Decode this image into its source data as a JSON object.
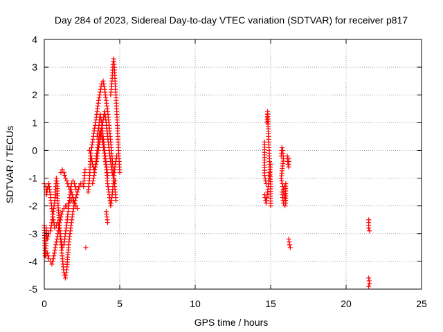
{
  "chart_data": {
    "type": "scatter",
    "title": "Day 284 of 2023, Sidereal Day-to-day VTEC variation (SDTVAR) for receiver p817",
    "xlabel": "GPS time / hours",
    "ylabel": "SDTVAR / TECUs",
    "xlim": [
      0,
      25
    ],
    "ylim": [
      -5,
      4
    ],
    "xticks": [
      0,
      5,
      10,
      15,
      20,
      25
    ],
    "yticks": [
      -5,
      -4,
      -3,
      -2,
      -1,
      0,
      1,
      2,
      3,
      4
    ],
    "grid": true,
    "marker": "+",
    "color": "#ff0000",
    "series": [
      {
        "name": "SDTVAR",
        "segments": [
          [
            [
              0.0,
              -2.7
            ],
            [
              0.05,
              -3.8
            ],
            [
              0.1,
              -3.8
            ],
            [
              0.12,
              -2.8
            ],
            [
              0.15,
              -3.1
            ],
            [
              0.2,
              -3.2
            ],
            [
              0.3,
              -3.0
            ],
            [
              0.4,
              -2.9
            ],
            [
              0.5,
              -2.6
            ],
            [
              0.6,
              -2.2
            ],
            [
              0.7,
              -1.8
            ],
            [
              0.75,
              -1.4
            ],
            [
              0.8,
              -1.0
            ],
            [
              0.85,
              -1.2
            ],
            [
              0.9,
              -1.9
            ],
            [
              1.0,
              -2.6
            ],
            [
              1.1,
              -3.2
            ],
            [
              1.2,
              -3.5
            ],
            [
              1.3,
              -3.4
            ],
            [
              1.4,
              -3.0
            ],
            [
              1.5,
              -2.6
            ],
            [
              1.6,
              -2.1
            ],
            [
              1.7,
              -1.6
            ],
            [
              1.8,
              -1.2
            ],
            [
              1.9,
              -1.1
            ],
            [
              2.0,
              -1.2
            ],
            [
              2.1,
              -1.4
            ]
          ],
          [
            [
              0.0,
              -1.2
            ],
            [
              0.1,
              -1.3
            ],
            [
              0.15,
              -1.6
            ],
            [
              0.2,
              -1.4
            ],
            [
              0.3,
              -1.2
            ],
            [
              0.4,
              -1.6
            ],
            [
              0.5,
              -2.1
            ],
            [
              0.6,
              -2.5
            ],
            [
              0.7,
              -2.8
            ],
            [
              0.8,
              -2.7
            ],
            [
              0.9,
              -2.6
            ],
            [
              1.0,
              -2.8
            ],
            [
              1.1,
              -3.3
            ],
            [
              1.2,
              -3.9
            ],
            [
              1.3,
              -4.4
            ],
            [
              1.4,
              -4.6
            ],
            [
              1.5,
              -4.2
            ],
            [
              1.6,
              -3.5
            ],
            [
              1.7,
              -3.0
            ],
            [
              1.8,
              -2.6
            ],
            [
              1.9,
              -2.2
            ],
            [
              2.0,
              -1.9
            ],
            [
              2.1,
              -1.7
            ],
            [
              2.2,
              -1.5
            ],
            [
              2.3,
              -1.3
            ],
            [
              2.4,
              -1.2
            ]
          ],
          [
            [
              0.2,
              -3.7
            ],
            [
              0.3,
              -3.9
            ],
            [
              0.4,
              -4.0
            ],
            [
              0.5,
              -4.1
            ],
            [
              0.6,
              -3.9
            ],
            [
              0.7,
              -3.6
            ],
            [
              0.8,
              -3.3
            ],
            [
              0.9,
              -3.0
            ],
            [
              1.0,
              -2.7
            ],
            [
              1.1,
              -2.4
            ],
            [
              1.2,
              -2.2
            ],
            [
              1.3,
              -2.1
            ],
            [
              1.4,
              -2.0
            ],
            [
              1.5,
              -2.0
            ],
            [
              1.6,
              -1.9
            ],
            [
              1.7,
              -1.8
            ],
            [
              1.8,
              -1.8
            ],
            [
              1.9,
              -1.8
            ],
            [
              2.0,
              -1.9
            ],
            [
              2.1,
              -2.0
            ],
            [
              2.2,
              -2.1
            ]
          ],
          [
            [
              1.1,
              -0.8
            ],
            [
              1.2,
              -0.7
            ],
            [
              1.3,
              -0.8
            ],
            [
              1.4,
              -1.0
            ],
            [
              1.5,
              -1.1
            ],
            [
              1.6,
              -1.3
            ],
            [
              1.7,
              -1.4
            ],
            [
              1.8,
              -1.5
            ],
            [
              1.9,
              -1.7
            ],
            [
              2.0,
              -1.9
            ],
            [
              2.1,
              -2.0
            ]
          ],
          [
            [
              2.3,
              -1.3
            ],
            [
              2.5,
              -1.2
            ],
            [
              2.6,
              -1.3
            ],
            [
              2.7,
              -0.7
            ],
            [
              2.75,
              -3.5
            ]
          ],
          [
            [
              2.9,
              -1.5
            ],
            [
              3.0,
              -1.0
            ],
            [
              3.05,
              -0.4
            ],
            [
              3.1,
              0.0
            ],
            [
              3.2,
              0.3
            ],
            [
              3.3,
              0.7
            ],
            [
              3.4,
              1.0
            ],
            [
              3.5,
              1.4
            ],
            [
              3.6,
              1.8
            ],
            [
              3.7,
              2.1
            ],
            [
              3.8,
              2.4
            ],
            [
              3.9,
              2.5
            ],
            [
              4.0,
              2.2
            ],
            [
              4.1,
              1.8
            ],
            [
              4.2,
              1.4
            ],
            [
              4.3,
              0.9
            ],
            [
              4.4,
              0.3
            ],
            [
              4.5,
              -0.3
            ],
            [
              4.6,
              -0.9
            ],
            [
              4.7,
              -1.5
            ],
            [
              4.75,
              -1.8
            ]
          ],
          [
            [
              3.0,
              0.0
            ],
            [
              3.1,
              -0.2
            ],
            [
              3.2,
              -0.5
            ],
            [
              3.3,
              -0.7
            ],
            [
              3.4,
              -0.6
            ],
            [
              3.5,
              -0.3
            ],
            [
              3.6,
              0.1
            ],
            [
              3.7,
              0.4
            ],
            [
              3.8,
              0.8
            ],
            [
              3.9,
              1.1
            ],
            [
              4.0,
              1.4
            ],
            [
              4.1,
              1.0
            ],
            [
              4.2,
              0.5
            ],
            [
              4.3,
              0.0
            ],
            [
              4.4,
              -0.4
            ],
            [
              4.5,
              -0.8
            ],
            [
              4.6,
              -1.0
            ],
            [
              4.7,
              -1.1
            ]
          ],
          [
            [
              3.2,
              -1.2
            ],
            [
              3.3,
              -0.9
            ],
            [
              3.4,
              -0.5
            ],
            [
              3.5,
              0.0
            ],
            [
              3.6,
              0.4
            ],
            [
              3.7,
              0.7
            ],
            [
              3.8,
              0.5
            ],
            [
              3.9,
              0.2
            ],
            [
              4.0,
              -0.2
            ],
            [
              4.1,
              -0.6
            ],
            [
              4.2,
              -1.2
            ],
            [
              4.3,
              -1.6
            ],
            [
              4.4,
              -2.0
            ],
            [
              4.5,
              -1.6
            ],
            [
              4.6,
              -1.0
            ],
            [
              4.7,
              -0.5
            ],
            [
              4.8,
              -0.2
            ]
          ],
          [
            [
              3.5,
              0.5
            ],
            [
              3.6,
              0.8
            ],
            [
              3.7,
              1.3
            ],
            [
              3.8,
              1.0
            ],
            [
              3.9,
              0.5
            ],
            [
              4.0,
              0.0
            ],
            [
              4.1,
              -0.5
            ],
            [
              4.2,
              -0.9
            ]
          ],
          [
            [
              4.4,
              2.0
            ],
            [
              4.5,
              2.6
            ],
            [
              4.55,
              3.1
            ],
            [
              4.6,
              3.3
            ],
            [
              4.65,
              2.9
            ],
            [
              4.7,
              2.4
            ],
            [
              4.75,
              2.0
            ],
            [
              4.8,
              1.4
            ],
            [
              4.85,
              0.8
            ],
            [
              4.9,
              0.2
            ],
            [
              4.95,
              -0.3
            ],
            [
              5.0,
              -0.8
            ]
          ],
          [
            [
              4.1,
              -2.2
            ],
            [
              4.15,
              -2.4
            ],
            [
              4.2,
              -2.6
            ]
          ],
          [
            [
              14.6,
              0.3
            ],
            [
              14.6,
              -0.9
            ],
            [
              14.7,
              -1.2
            ],
            [
              14.75,
              1.0
            ],
            [
              14.8,
              1.4
            ],
            [
              14.85,
              0.6
            ],
            [
              14.9,
              0.0
            ],
            [
              14.95,
              -0.6
            ],
            [
              15.0,
              -1.3
            ],
            [
              15.0,
              -2.0
            ]
          ],
          [
            [
              14.6,
              -1.6
            ],
            [
              14.7,
              -1.9
            ],
            [
              14.8,
              -1.5
            ],
            [
              14.9,
              -1.0
            ],
            [
              15.0,
              -0.5
            ]
          ],
          [
            [
              15.7,
              -0.2
            ],
            [
              15.75,
              0.1
            ],
            [
              15.8,
              0.0
            ],
            [
              15.85,
              -0.3
            ],
            [
              15.7,
              -1.0
            ],
            [
              15.8,
              -1.3
            ],
            [
              15.9,
              -1.6
            ],
            [
              16.0,
              -1.9
            ],
            [
              16.0,
              -1.2
            ],
            [
              15.75,
              -1.5
            ],
            [
              15.85,
              -1.9
            ],
            [
              15.95,
              -2.0
            ]
          ],
          [
            [
              16.1,
              -0.2
            ],
            [
              16.15,
              -0.5
            ],
            [
              16.2,
              -0.6
            ],
            [
              16.2,
              -0.3
            ],
            [
              16.2,
              -3.2
            ],
            [
              16.25,
              -3.4
            ],
            [
              16.3,
              -3.5
            ]
          ],
          [
            [
              21.5,
              -2.5
            ],
            [
              21.5,
              -2.8
            ],
            [
              21.55,
              -2.9
            ],
            [
              21.5,
              -4.6
            ],
            [
              21.55,
              -4.8
            ],
            [
              21.5,
              -4.9
            ]
          ]
        ]
      }
    ]
  }
}
